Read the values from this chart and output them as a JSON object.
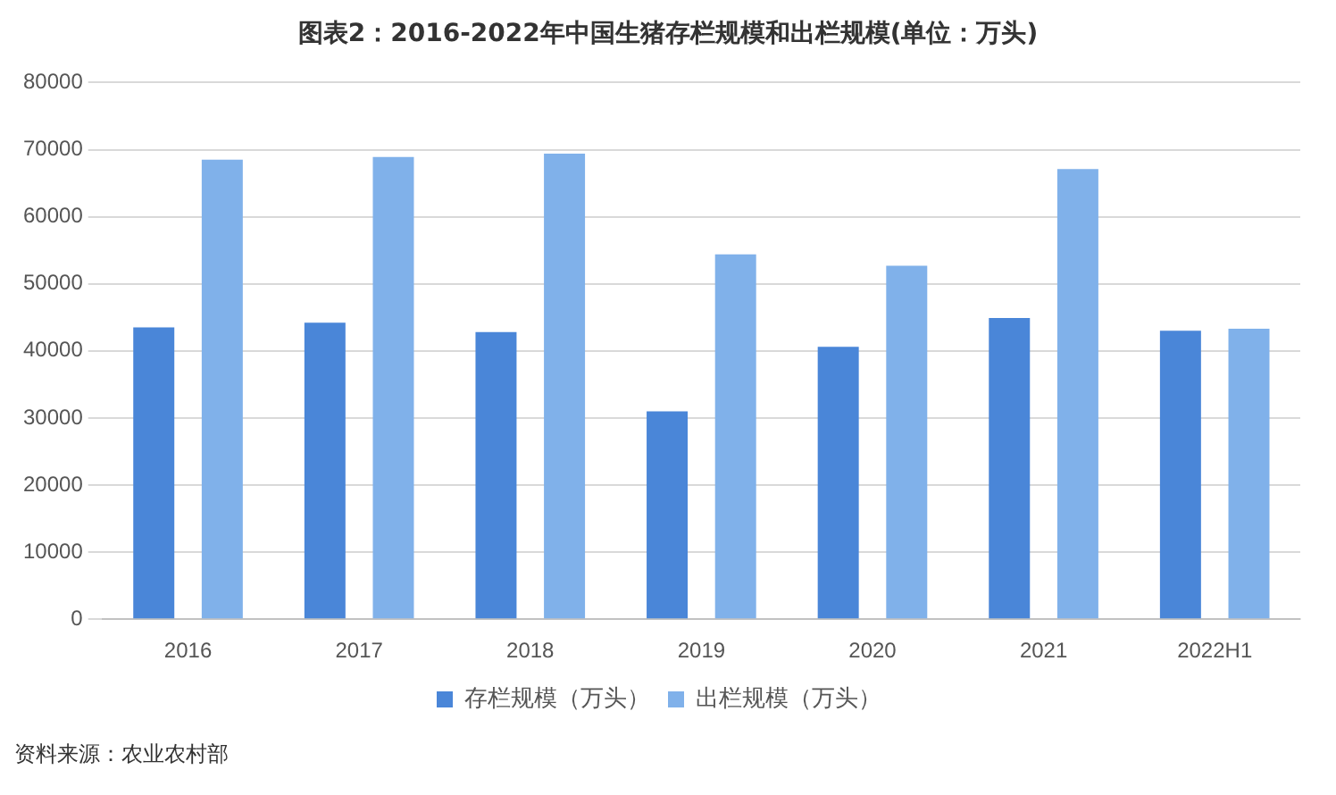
{
  "chart_data": {
    "type": "bar",
    "title": "图表2：2016-2022年中国生猪存栏规模和出栏规模(单位：万头)",
    "categories": [
      "2016",
      "2017",
      "2018",
      "2019",
      "2020",
      "2021",
      "2022H1"
    ],
    "series": [
      {
        "name": "存栏规模（万头）",
        "color": "#4a86d8",
        "values": [
          43500,
          44200,
          42800,
          31000,
          40600,
          44900,
          43000
        ]
      },
      {
        "name": "出栏规模（万头）",
        "color": "#80b1ea",
        "values": [
          68500,
          68900,
          69400,
          54400,
          52700,
          67100,
          43300
        ]
      }
    ],
    "ylim": [
      0,
      80000
    ],
    "yticks": [
      0,
      10000,
      20000,
      30000,
      40000,
      50000,
      60000,
      70000,
      80000
    ],
    "grid": "y",
    "legend": "bottom",
    "annotations": [
      "资料来源：农业农村部"
    ]
  }
}
